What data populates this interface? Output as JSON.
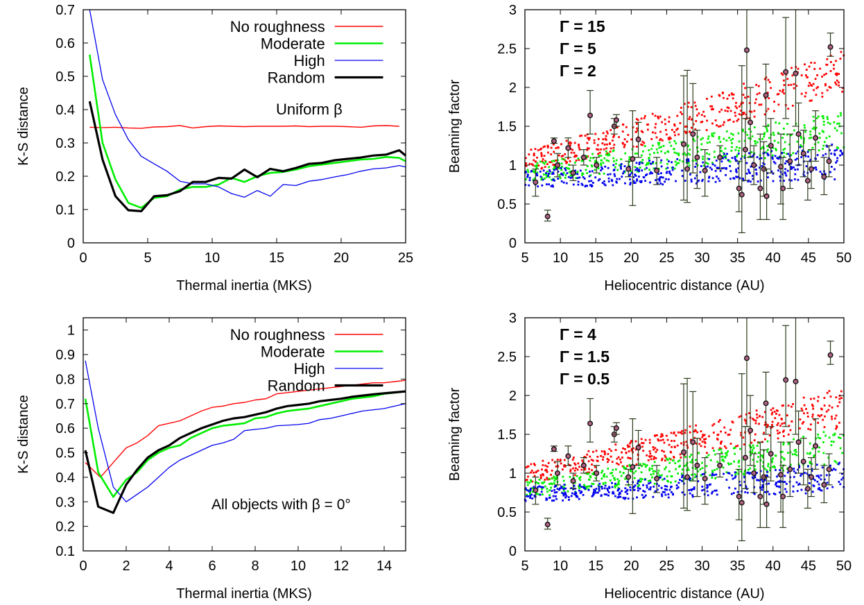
{
  "chart_data": [
    {
      "type": "line",
      "xlabel": "Thermal inertia (MKS)",
      "ylabel": "K-S distance",
      "xlim": [
        0,
        25
      ],
      "ylim": [
        0,
        0.7
      ],
      "xticks": [
        0,
        5,
        10,
        15,
        20,
        25
      ],
      "yticks": [
        0,
        0.1,
        0.2,
        0.3,
        0.4,
        0.5,
        0.6,
        0.7
      ],
      "annotation": "Uniform β",
      "legend_position": "top-right",
      "series": [
        {
          "name": "No roughness",
          "color": "#ff0000",
          "x": [
            0.5,
            1.5,
            2.5,
            3.5,
            4.5,
            5.5,
            6.5,
            7.5,
            8.5,
            9.5,
            10.5,
            11.5,
            12.5,
            13.5,
            14.5,
            15.5,
            16.5,
            17.5,
            18.5,
            19.5,
            20.5,
            21.5,
            22.5,
            23.5,
            24.5
          ],
          "y": [
            0.347,
            0.346,
            0.347,
            0.345,
            0.344,
            0.348,
            0.349,
            0.352,
            0.345,
            0.349,
            0.351,
            0.35,
            0.349,
            0.35,
            0.35,
            0.35,
            0.351,
            0.349,
            0.35,
            0.35,
            0.349,
            0.347,
            0.351,
            0.352,
            0.35
          ]
        },
        {
          "name": "Moderate",
          "color": "#00ee00",
          "x": [
            0.5,
            1.5,
            2.5,
            3.5,
            4.5,
            5.5,
            6.5,
            7.5,
            8.5,
            9.5,
            10.5,
            11.5,
            12.5,
            13.5,
            14.5,
            15.5,
            16.5,
            17.5,
            18.5,
            19.5,
            20.5,
            21.5,
            22.5,
            23.5,
            24.5,
            25
          ],
          "y": [
            0.565,
            0.3,
            0.19,
            0.12,
            0.105,
            0.135,
            0.14,
            0.16,
            0.168,
            0.168,
            0.175,
            0.195,
            0.183,
            0.2,
            0.21,
            0.213,
            0.22,
            0.23,
            0.235,
            0.24,
            0.245,
            0.25,
            0.252,
            0.258,
            0.255,
            0.245
          ]
        },
        {
          "name": "High",
          "color": "#0000ee",
          "x": [
            0.5,
            1.5,
            2.5,
            3.5,
            4.5,
            5.5,
            6.5,
            7.5,
            8.5,
            9.5,
            10.5,
            11.5,
            12.5,
            13.5,
            14.5,
            15.5,
            16.5,
            17.5,
            18.5,
            19.5,
            20.5,
            21.5,
            22.5,
            23.5,
            24.5,
            25
          ],
          "y": [
            0.7,
            0.49,
            0.385,
            0.31,
            0.26,
            0.237,
            0.215,
            0.185,
            0.177,
            0.177,
            0.168,
            0.148,
            0.137,
            0.157,
            0.14,
            0.175,
            0.172,
            0.185,
            0.19,
            0.198,
            0.205,
            0.215,
            0.222,
            0.225,
            0.232,
            0.228
          ]
        },
        {
          "name": "Random",
          "color": "#000000",
          "x": [
            0.5,
            1.5,
            2.5,
            3.5,
            4.5,
            5.5,
            6.5,
            7.5,
            8.5,
            9.5,
            10.5,
            11.5,
            12.5,
            13.5,
            14.5,
            15.5,
            16.5,
            17.5,
            18.5,
            19.5,
            20.5,
            21.5,
            22.5,
            23.5,
            24.5,
            25
          ],
          "y": [
            0.425,
            0.25,
            0.14,
            0.098,
            0.095,
            0.14,
            0.143,
            0.155,
            0.183,
            0.183,
            0.195,
            0.193,
            0.22,
            0.197,
            0.222,
            0.215,
            0.225,
            0.237,
            0.24,
            0.248,
            0.252,
            0.256,
            0.262,
            0.265,
            0.278,
            0.262
          ]
        }
      ]
    },
    {
      "type": "line",
      "xlabel": "Thermal inertia (MKS)",
      "ylabel": "K-S distance",
      "xlim": [
        0,
        15
      ],
      "ylim": [
        0.1,
        1.05
      ],
      "xticks": [
        0,
        2,
        4,
        6,
        8,
        10,
        12,
        14
      ],
      "yticks": [
        0.1,
        0.2,
        0.3,
        0.4,
        0.5,
        0.6,
        0.7,
        0.8,
        0.9,
        1
      ],
      "annotation": "All objects with β = 0°",
      "legend_position": "top-right",
      "series": [
        {
          "name": "No roughness",
          "color": "#ff0000",
          "x": [
            0.1,
            0.8,
            1.5,
            2.0,
            2.5,
            3.0,
            3.5,
            4.0,
            4.5,
            5.0,
            5.5,
            6.0,
            6.5,
            7.0,
            7.5,
            8.0,
            8.5,
            9.0,
            9.5,
            10.0,
            10.5,
            11.0,
            11.5,
            12.0,
            12.5,
            13.0,
            13.5,
            14.0,
            14.5,
            15.0
          ],
          "y": [
            0.46,
            0.4,
            0.47,
            0.52,
            0.54,
            0.57,
            0.61,
            0.62,
            0.63,
            0.65,
            0.67,
            0.685,
            0.69,
            0.7,
            0.705,
            0.715,
            0.72,
            0.74,
            0.745,
            0.75,
            0.755,
            0.76,
            0.765,
            0.77,
            0.775,
            0.78,
            0.785,
            0.785,
            0.79,
            0.795
          ]
        },
        {
          "name": "Moderate",
          "color": "#00ee00",
          "x": [
            0.1,
            0.7,
            1.4,
            2.0,
            2.5,
            3.0,
            3.5,
            4.0,
            4.5,
            5.0,
            5.5,
            6.0,
            6.5,
            7.0,
            7.5,
            8.0,
            8.5,
            9.0,
            9.5,
            10.0,
            10.5,
            11.0,
            11.5,
            12.0,
            12.5,
            13.0,
            13.5,
            14.0,
            14.5,
            15.0
          ],
          "y": [
            0.72,
            0.42,
            0.32,
            0.39,
            0.42,
            0.47,
            0.5,
            0.52,
            0.53,
            0.56,
            0.58,
            0.6,
            0.61,
            0.615,
            0.62,
            0.64,
            0.645,
            0.66,
            0.67,
            0.675,
            0.68,
            0.69,
            0.7,
            0.71,
            0.72,
            0.725,
            0.73,
            0.74,
            0.745,
            0.75
          ]
        },
        {
          "name": "High",
          "color": "#0000ee",
          "x": [
            0.1,
            0.7,
            1.4,
            2.0,
            2.5,
            3.0,
            3.5,
            4.0,
            4.5,
            5.0,
            5.5,
            6.0,
            6.5,
            7.0,
            7.5,
            8.0,
            8.5,
            9.0,
            9.5,
            10.0,
            10.5,
            11.0,
            11.5,
            12.0,
            12.5,
            13.0,
            13.5,
            14.0,
            14.5,
            15.0
          ],
          "y": [
            0.875,
            0.6,
            0.36,
            0.3,
            0.33,
            0.36,
            0.4,
            0.44,
            0.47,
            0.49,
            0.51,
            0.53,
            0.54,
            0.555,
            0.59,
            0.595,
            0.6,
            0.61,
            0.612,
            0.615,
            0.62,
            0.635,
            0.64,
            0.65,
            0.66,
            0.67,
            0.675,
            0.68,
            0.69,
            0.7
          ]
        },
        {
          "name": "Random",
          "color": "#000000",
          "x": [
            0.1,
            0.7,
            1.4,
            2.0,
            2.5,
            3.0,
            3.5,
            4.0,
            4.5,
            5.0,
            5.5,
            6.0,
            6.5,
            7.0,
            7.5,
            8.0,
            8.5,
            9.0,
            9.5,
            10.0,
            10.5,
            11.0,
            11.5,
            12.0,
            12.5,
            13.0,
            13.5,
            14.0,
            14.5,
            15.0
          ],
          "y": [
            0.51,
            0.28,
            0.255,
            0.37,
            0.43,
            0.48,
            0.51,
            0.53,
            0.56,
            0.58,
            0.6,
            0.615,
            0.63,
            0.64,
            0.645,
            0.655,
            0.665,
            0.68,
            0.69,
            0.695,
            0.7,
            0.71,
            0.715,
            0.72,
            0.728,
            0.733,
            0.738,
            0.742,
            0.746,
            0.75
          ]
        }
      ]
    },
    {
      "type": "scatter",
      "xlabel": "Heliocentric distance (AU)",
      "ylabel": "Beaming factor",
      "xlim": [
        5,
        50
      ],
      "ylim": [
        0,
        3
      ],
      "xticks": [
        5,
        10,
        15,
        20,
        25,
        30,
        35,
        40,
        45,
        50
      ],
      "yticks": [
        0,
        0.5,
        1,
        1.5,
        2,
        2.5,
        3
      ],
      "grid": false,
      "model_bands": [
        {
          "name": "Γ = 15",
          "color": "#ff0000",
          "center_at_5AU": 1.05,
          "center_at_50AU": 2.2,
          "spread": 0.22
        },
        {
          "name": "Γ = 5",
          "color": "#00ee00",
          "center_at_5AU": 0.9,
          "center_at_50AU": 1.45,
          "spread": 0.2
        },
        {
          "name": "Γ = 2",
          "color": "#0000ee",
          "center_at_5AU": 0.82,
          "center_at_50AU": 1.05,
          "spread": 0.18
        }
      ]
    },
    {
      "type": "scatter",
      "xlabel": "Heliocentric distance (AU)",
      "ylabel": "Beaming factor",
      "xlim": [
        5,
        50
      ],
      "ylim": [
        0,
        3
      ],
      "xticks": [
        5,
        10,
        15,
        20,
        25,
        30,
        35,
        40,
        45,
        50
      ],
      "yticks": [
        0,
        0.5,
        1,
        1.5,
        2,
        2.5,
        3
      ],
      "grid": false,
      "model_bands": [
        {
          "name": "Γ = 4",
          "color": "#ff0000",
          "center_at_5AU": 1.0,
          "center_at_50AU": 1.85,
          "spread": 0.2
        },
        {
          "name": "Γ = 1.5",
          "color": "#00ee00",
          "center_at_5AU": 0.8,
          "center_at_50AU": 1.35,
          "spread": 0.18
        },
        {
          "name": "Γ = 0.5",
          "color": "#0000ee",
          "center_at_5AU": 0.73,
          "center_at_50AU": 0.95,
          "spread": 0.15
        }
      ]
    }
  ],
  "observations": {
    "color": "#2a3a1a",
    "points": [
      {
        "x": 6.5,
        "y": 0.78,
        "lo": 0.6,
        "hi": 0.95
      },
      {
        "x": 8.2,
        "y": 0.34,
        "lo": 0.28,
        "hi": 0.42
      },
      {
        "x": 9.1,
        "y": 1.31,
        "lo": 1.28,
        "hi": 1.35
      },
      {
        "x": 9.6,
        "y": 1.0,
        "lo": 0.85,
        "hi": 1.15
      },
      {
        "x": 11.1,
        "y": 1.22,
        "lo": 1.1,
        "hi": 1.35
      },
      {
        "x": 11.8,
        "y": 0.9,
        "lo": 0.8,
        "hi": 1.0
      },
      {
        "x": 13.3,
        "y": 1.1,
        "lo": 1.0,
        "hi": 1.2
      },
      {
        "x": 14.2,
        "y": 1.64,
        "lo": 1.4,
        "hi": 1.96
      },
      {
        "x": 15.1,
        "y": 1.0,
        "lo": 0.9,
        "hi": 1.1
      },
      {
        "x": 17.6,
        "y": 1.5,
        "lo": 1.4,
        "hi": 1.6
      },
      {
        "x": 17.9,
        "y": 1.58,
        "lo": 1.5,
        "hi": 1.65
      },
      {
        "x": 19.6,
        "y": 0.95,
        "lo": 0.85,
        "hi": 1.05
      },
      {
        "x": 20.2,
        "y": 1.08,
        "lo": 0.48,
        "hi": 1.7
      },
      {
        "x": 21.0,
        "y": 1.33,
        "lo": 1.1,
        "hi": 1.55
      },
      {
        "x": 23.6,
        "y": 0.93,
        "lo": 0.75,
        "hi": 1.1
      },
      {
        "x": 27.4,
        "y": 1.27,
        "lo": 0.55,
        "hi": 2.15
      },
      {
        "x": 27.9,
        "y": 0.95,
        "lo": 0.52,
        "hi": 2.22
      },
      {
        "x": 28.7,
        "y": 1.4,
        "lo": 0.9,
        "hi": 2.05
      },
      {
        "x": 29.3,
        "y": 1.1,
        "lo": 0.7,
        "hi": 1.45
      },
      {
        "x": 30.4,
        "y": 0.93,
        "lo": 0.6,
        "hi": 1.2
      },
      {
        "x": 32.5,
        "y": 1.1,
        "lo": 0.95,
        "hi": 1.25
      },
      {
        "x": 35.2,
        "y": 0.7,
        "lo": 0.4,
        "hi": 1.05
      },
      {
        "x": 35.6,
        "y": 0.62,
        "lo": 0.13,
        "hi": 2.28
      },
      {
        "x": 36.1,
        "y": 1.2,
        "lo": 0.8,
        "hi": 1.6
      },
      {
        "x": 36.3,
        "y": 2.48,
        "lo": 1.6,
        "hi": 3.0
      },
      {
        "x": 36.8,
        "y": 1.55,
        "lo": 1.1,
        "hi": 2.0
      },
      {
        "x": 37.3,
        "y": 1.0,
        "lo": 0.75,
        "hi": 1.25
      },
      {
        "x": 38.2,
        "y": 0.7,
        "lo": 0.3,
        "hi": 1.4
      },
      {
        "x": 38.7,
        "y": 0.95,
        "lo": 0.6,
        "hi": 1.3
      },
      {
        "x": 39.0,
        "y": 1.9,
        "lo": 1.5,
        "hi": 2.3
      },
      {
        "x": 39.1,
        "y": 0.6,
        "lo": 0.3,
        "hi": 0.95
      },
      {
        "x": 39.7,
        "y": 1.25,
        "lo": 0.9,
        "hi": 1.6
      },
      {
        "x": 41.1,
        "y": 0.98,
        "lo": 0.5,
        "hi": 1.4
      },
      {
        "x": 41.4,
        "y": 0.7,
        "lo": 0.3,
        "hi": 1.1
      },
      {
        "x": 41.8,
        "y": 2.2,
        "lo": 1.6,
        "hi": 2.9
      },
      {
        "x": 42.4,
        "y": 1.05,
        "lo": 0.7,
        "hi": 1.4
      },
      {
        "x": 43.2,
        "y": 2.18,
        "lo": 1.5,
        "hi": 3.0
      },
      {
        "x": 43.6,
        "y": 1.4,
        "lo": 1.0,
        "hi": 1.8
      },
      {
        "x": 44.3,
        "y": 1.15,
        "lo": 0.85,
        "hi": 1.45
      },
      {
        "x": 44.9,
        "y": 0.8,
        "lo": 0.55,
        "hi": 1.05
      },
      {
        "x": 45.4,
        "y": 0.95,
        "lo": 0.7,
        "hi": 1.2
      },
      {
        "x": 46.0,
        "y": 1.35,
        "lo": 1.05,
        "hi": 1.7
      },
      {
        "x": 47.2,
        "y": 0.85,
        "lo": 0.62,
        "hi": 1.1
      },
      {
        "x": 47.9,
        "y": 1.05,
        "lo": 0.85,
        "hi": 1.25
      },
      {
        "x": 48.1,
        "y": 2.52,
        "lo": 2.4,
        "hi": 2.7
      }
    ]
  }
}
